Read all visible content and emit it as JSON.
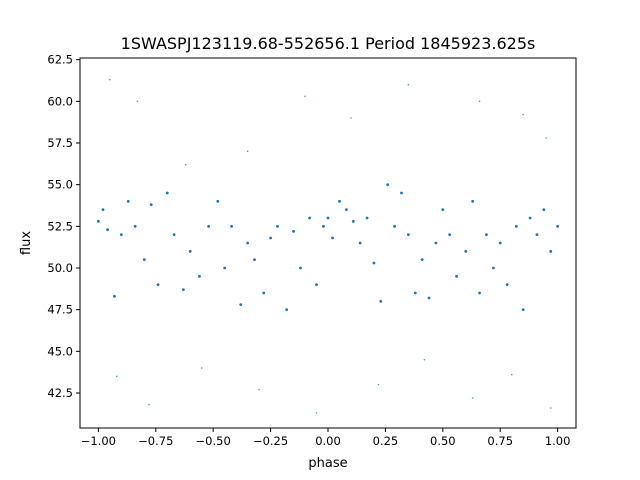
{
  "chart_data": {
    "type": "scatter",
    "title": "1SWASPJ123119.68-552656.1 Period 1845923.625s",
    "xlabel": "phase",
    "ylabel": "flux",
    "xlim": [
      -1.08,
      1.08
    ],
    "ylim": [
      40.4,
      62.6
    ],
    "xticks": [
      -1.0,
      -0.75,
      -0.5,
      -0.25,
      0.0,
      0.25,
      0.5,
      0.75,
      1.0
    ],
    "xtick_labels": [
      "−1.00",
      "−0.75",
      "−0.50",
      "−0.25",
      "0.00",
      "0.25",
      "0.50",
      "0.75",
      "1.00"
    ],
    "yticks": [
      42.5,
      45.0,
      47.5,
      50.0,
      52.5,
      55.0,
      57.5,
      60.0,
      62.5
    ],
    "ytick_labels": [
      "42.5",
      "45.0",
      "47.5",
      "50.0",
      "52.5",
      "55.0",
      "57.5",
      "60.0",
      "62.5"
    ],
    "grid": false,
    "marker_color": "#1f77b4",
    "series": [
      {
        "points": [
          [
            -1.0,
            52.8
          ],
          [
            -0.98,
            53.5
          ],
          [
            -0.96,
            52.3
          ],
          [
            -0.93,
            48.3
          ],
          [
            -0.9,
            52.0
          ],
          [
            -0.87,
            54.0
          ],
          [
            -0.84,
            52.5
          ],
          [
            -0.8,
            50.5
          ],
          [
            -0.77,
            53.8
          ],
          [
            -0.74,
            49.0
          ],
          [
            -0.7,
            54.5
          ],
          [
            -0.67,
            52.0
          ],
          [
            -0.63,
            48.7
          ],
          [
            -0.6,
            51.0
          ],
          [
            -0.56,
            49.5
          ],
          [
            -0.52,
            52.5
          ],
          [
            -0.48,
            54.0
          ],
          [
            -0.45,
            50.0
          ],
          [
            -0.42,
            52.5
          ],
          [
            -0.38,
            47.8
          ],
          [
            -0.35,
            51.5
          ],
          [
            -0.32,
            50.5
          ],
          [
            -0.28,
            48.5
          ],
          [
            -0.25,
            51.8
          ],
          [
            -0.22,
            52.5
          ],
          [
            -0.18,
            47.5
          ],
          [
            -0.15,
            52.2
          ],
          [
            -0.12,
            50.0
          ],
          [
            -0.08,
            53.0
          ],
          [
            -0.05,
            49.0
          ],
          [
            -0.02,
            52.5
          ],
          [
            0.0,
            53.0
          ],
          [
            0.02,
            51.8
          ],
          [
            0.05,
            54.0
          ],
          [
            0.08,
            53.5
          ],
          [
            0.11,
            52.8
          ],
          [
            0.14,
            51.5
          ],
          [
            0.17,
            53.0
          ],
          [
            0.2,
            50.3
          ],
          [
            0.23,
            48.0
          ],
          [
            0.26,
            55.0
          ],
          [
            0.29,
            52.5
          ],
          [
            0.32,
            54.5
          ],
          [
            0.35,
            52.0
          ],
          [
            0.38,
            48.5
          ],
          [
            0.41,
            50.5
          ],
          [
            0.44,
            48.2
          ],
          [
            0.47,
            51.5
          ],
          [
            0.5,
            53.5
          ],
          [
            0.53,
            52.0
          ],
          [
            0.56,
            49.5
          ],
          [
            0.6,
            51.0
          ],
          [
            0.63,
            54.0
          ],
          [
            0.66,
            48.5
          ],
          [
            0.69,
            52.0
          ],
          [
            0.72,
            50.0
          ],
          [
            0.75,
            51.5
          ],
          [
            0.78,
            49.0
          ],
          [
            0.82,
            52.5
          ],
          [
            0.85,
            47.5
          ],
          [
            0.88,
            53.0
          ],
          [
            0.91,
            52.0
          ],
          [
            0.94,
            53.5
          ],
          [
            0.97,
            51.0
          ],
          [
            1.0,
            52.5
          ]
        ],
        "outliers": [
          [
            -0.95,
            61.3
          ],
          [
            -0.83,
            60.0
          ],
          [
            -0.62,
            56.2
          ],
          [
            -0.35,
            57.0
          ],
          [
            -0.1,
            60.3
          ],
          [
            0.1,
            59.0
          ],
          [
            0.35,
            61.0
          ],
          [
            0.66,
            60.0
          ],
          [
            0.85,
            59.2
          ],
          [
            0.95,
            57.8
          ],
          [
            -0.92,
            43.5
          ],
          [
            -0.78,
            41.8
          ],
          [
            -0.55,
            44.0
          ],
          [
            -0.3,
            42.7
          ],
          [
            -0.05,
            41.3
          ],
          [
            0.22,
            43.0
          ],
          [
            0.42,
            44.5
          ],
          [
            0.63,
            42.2
          ],
          [
            0.8,
            43.6
          ],
          [
            0.97,
            41.6
          ]
        ]
      }
    ]
  }
}
